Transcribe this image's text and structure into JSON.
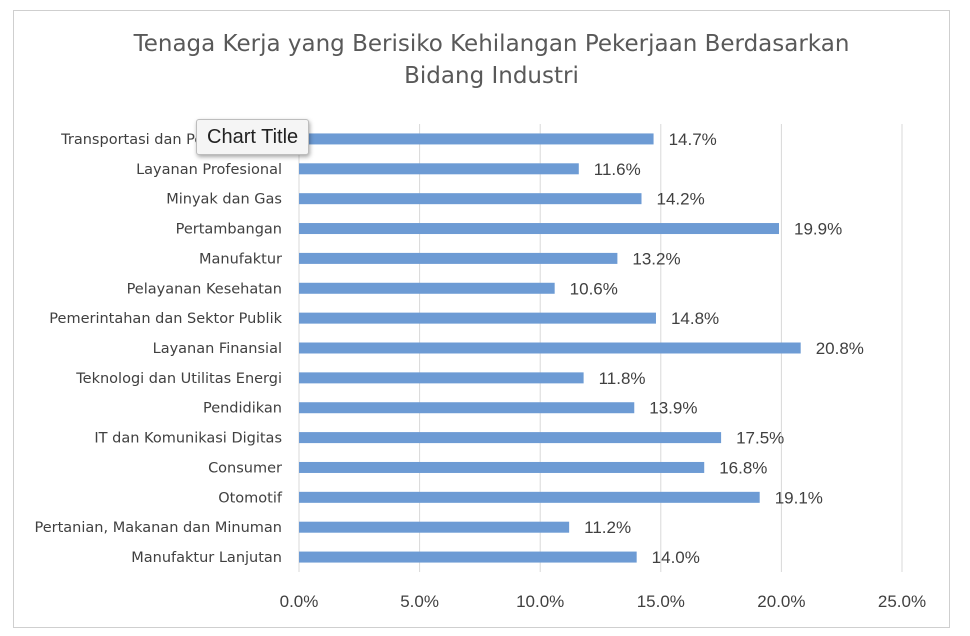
{
  "tooltip": {
    "text": "Chart Title"
  },
  "chart_data": {
    "type": "bar",
    "orientation": "horizontal",
    "title": "Tenaga Kerja yang Berisiko Kehilangan Pekerjaan Berdasarkan Bidang Industri",
    "title_lines": [
      "Tenaga Kerja yang Berisiko Kehilangan Pekerjaan Berdasarkan",
      "Bidang Industri"
    ],
    "xlabel": "",
    "ylabel": "",
    "xlim": [
      0,
      25
    ],
    "x_ticks": [
      "0.0%",
      "5.0%",
      "10.0%",
      "15.0%",
      "20.0%",
      "25.0%"
    ],
    "grid": true,
    "bar_color": "#6d9bd4",
    "categories": [
      "Transportasi dan Pergudangan",
      "Layanan Profesional",
      "Minyak dan Gas",
      "Pertambangan",
      "Manufaktur",
      "Pelayanan Kesehatan",
      "Pemerintahan dan Sektor Publik",
      "Layanan Finansial",
      "Teknologi dan Utilitas Energi",
      "Pendidikan",
      "IT dan Komunikasi Digitas",
      "Consumer",
      "Otomotif",
      "Pertanian, Makanan dan Minuman",
      "Manufaktur Lanjutan"
    ],
    "values": [
      14.7,
      11.6,
      14.2,
      19.9,
      13.2,
      10.6,
      14.8,
      20.8,
      11.8,
      13.9,
      17.5,
      16.8,
      19.1,
      11.2,
      14.0
    ],
    "data_labels": [
      "14.7%",
      "11.6%",
      "14.2%",
      "19.9%",
      "13.2%",
      "10.6%",
      "14.8%",
      "20.8%",
      "11.8%",
      "13.9%",
      "17.5%",
      "16.8%",
      "19.1%",
      "11.2%",
      "14.0%"
    ]
  }
}
